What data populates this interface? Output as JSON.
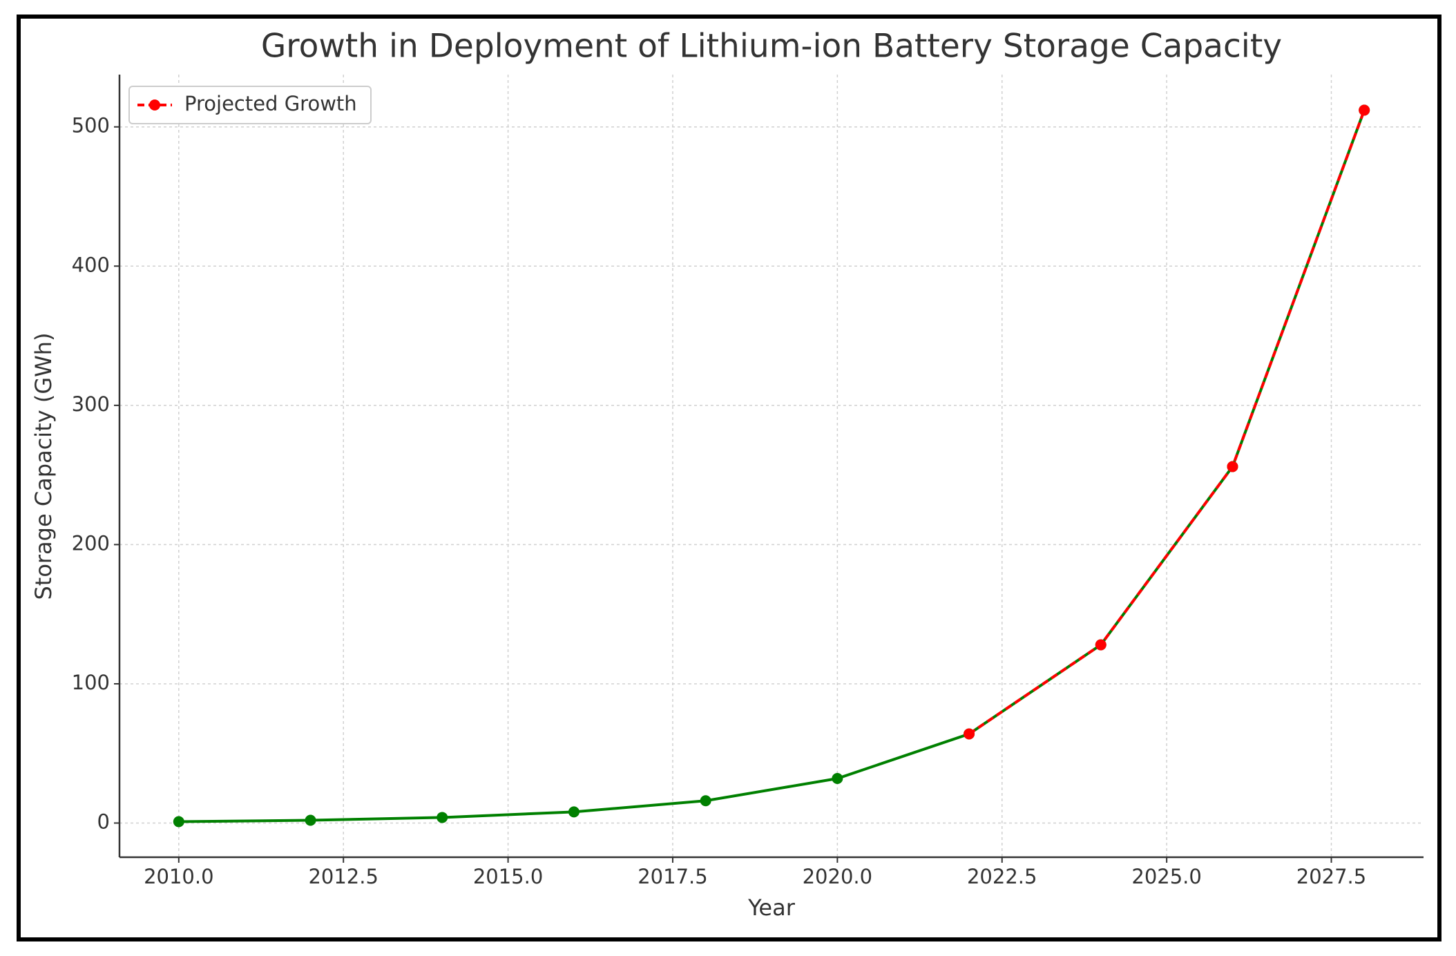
{
  "chart_data": {
    "type": "line",
    "title": "Growth in Deployment of Lithium-ion Battery Storage Capacity",
    "x_label": "Year",
    "y_label": "Storage Capacity (GWh)",
    "x": [
      2010,
      2012,
      2014,
      2016,
      2018,
      2020,
      2022,
      2024,
      2026,
      2028
    ],
    "series": [
      {
        "color": "#008000",
        "values": [
          1,
          2,
          4,
          8,
          16,
          32,
          64,
          128,
          256,
          512
        ]
      },
      {
        "name": "Projected Growth",
        "color": "#ff0000",
        "dashed": true,
        "values": [
          null,
          null,
          null,
          null,
          null,
          null,
          64,
          128,
          256,
          512
        ]
      }
    ],
    "xlim": [
      2009.1,
      2028.9
    ],
    "xticks": [
      {
        "value": 2010,
        "label": "2010.0"
      },
      {
        "value": 2012.5,
        "label": "2012.5"
      },
      {
        "value": 2015,
        "label": "2015.0"
      },
      {
        "value": 2017.5,
        "label": "2017.5"
      },
      {
        "value": 2020,
        "label": "2020.0"
      },
      {
        "value": 2022.5,
        "label": "2022.5"
      },
      {
        "value": 2025,
        "label": "2025.0"
      },
      {
        "value": 2027.5,
        "label": "2027.5"
      }
    ],
    "ylim": [
      -24.55,
      537.55
    ],
    "yticks": [
      0,
      100,
      200,
      300,
      400,
      500
    ],
    "grid": true,
    "legend_position": "upper left"
  }
}
